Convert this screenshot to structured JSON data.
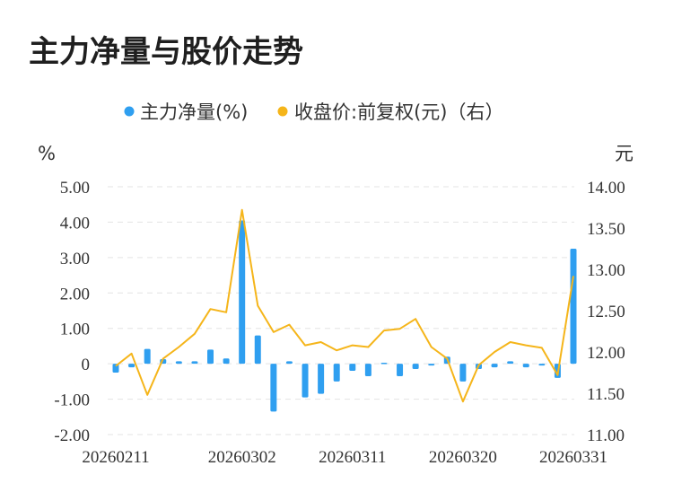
{
  "chart_data": {
    "type": "bar+line",
    "title": "主力净量与股价走势",
    "legend": [
      {
        "label": "主力净量(%)",
        "color": "#2f9ff0",
        "marker": "dot"
      },
      {
        "label": "收盘价:前复权(元)（右）",
        "color": "#f5b51a",
        "marker": "dot"
      }
    ],
    "legend_position": "top-center",
    "y_left_unit": "%",
    "y_right_unit": "元",
    "y_left_ticks": [
      "5.00",
      "4.00",
      "3.00",
      "2.00",
      "1.00",
      "0",
      "-1.00",
      "-2.00"
    ],
    "y_right_ticks": [
      "14.00",
      "13.50",
      "13.00",
      "12.50",
      "12.00",
      "11.50",
      "11.00"
    ],
    "x_tick_labels": [
      "20260211",
      "20260302",
      "20260311",
      "20260320",
      "20260331"
    ],
    "ylim_left": [
      -2,
      5
    ],
    "ylim_right": [
      11,
      14
    ],
    "grid": "horizontal-dashed",
    "series": [
      {
        "name": "主力净量(%)",
        "type": "bar",
        "axis": "left",
        "color": "#2f9ff0",
        "values": [
          -0.25,
          -0.1,
          0.42,
          0.13,
          0.07,
          0.07,
          0.4,
          0.15,
          4.05,
          0.8,
          -1.35,
          0.07,
          -0.95,
          -0.85,
          -0.5,
          -0.2,
          -0.35,
          0.03,
          -0.35,
          -0.15,
          -0.05,
          0.2,
          -0.5,
          -0.15,
          -0.1,
          0.07,
          -0.1,
          -0.05,
          -0.4,
          3.25
        ]
      },
      {
        "name": "收盘价:前复权(元)（右）",
        "type": "line",
        "axis": "right",
        "color": "#f5b51a",
        "values": [
          11.83,
          11.98,
          11.48,
          11.92,
          12.06,
          12.22,
          12.52,
          12.48,
          13.72,
          12.56,
          12.24,
          12.33,
          12.08,
          12.12,
          12.02,
          12.08,
          12.06,
          12.26,
          12.28,
          12.4,
          12.06,
          11.92,
          11.4,
          11.84,
          12.0,
          12.12,
          12.08,
          12.05,
          11.72,
          12.92
        ]
      }
    ]
  }
}
